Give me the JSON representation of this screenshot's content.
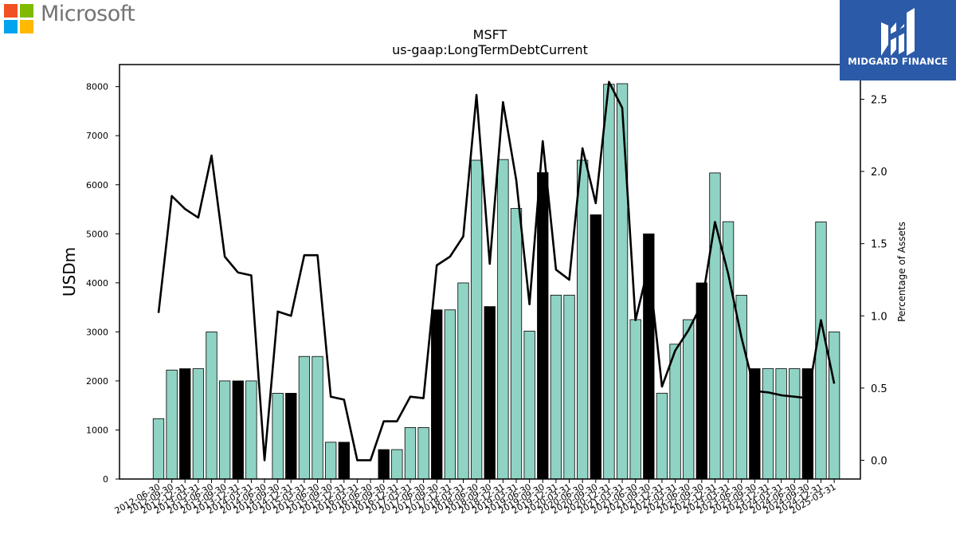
{
  "logos": {
    "microsoft": {
      "text": "Microsoft",
      "colors": [
        "#f25022",
        "#7fba00",
        "#00a4ef",
        "#ffb900"
      ]
    },
    "midgard": {
      "text": "MIDGARD FINANCE",
      "background": "#2b5aa8"
    }
  },
  "chart_data": {
    "type": "bar",
    "title": "MSFT",
    "subtitle": "us-gaap:LongTermDebtCurrent",
    "ylabel": "USDm",
    "y2label": "Percentage of Assets",
    "ylim": [
      0,
      8450
    ],
    "y2lim": [
      -0.13,
      2.74
    ],
    "yticks": [
      0,
      1000,
      2000,
      3000,
      4000,
      5000,
      6000,
      7000,
      8000
    ],
    "y2ticks": [
      0.0,
      0.5,
      1.0,
      1.5,
      2.0,
      2.5
    ],
    "colors": {
      "bar_default": "#8fd3c4",
      "bar_highlight": "#000000",
      "line": "#000000"
    },
    "categories": [
      "2012-06-30",
      "2012-09-30",
      "2012-12-31",
      "2013-03-31",
      "2013-06-30",
      "2013-09-30",
      "2013-12-31",
      "2014-03-31",
      "2014-06-30",
      "2014-09-30",
      "2014-12-31",
      "2015-03-31",
      "2015-06-30",
      "2015-09-30",
      "2015-12-31",
      "2016-03-31",
      "2016-06-30",
      "2016-09-30",
      "2016-12-31",
      "2017-03-31",
      "2017-06-30",
      "2017-09-30",
      "2017-12-31",
      "2018-03-31",
      "2018-06-30",
      "2018-09-30",
      "2018-12-31",
      "2019-03-31",
      "2019-06-30",
      "2019-09-30",
      "2019-12-31",
      "2020-03-31",
      "2020-06-30",
      "2020-09-30",
      "2020-12-31",
      "2021-03-31",
      "2021-06-30",
      "2021-09-30",
      "2021-12-31",
      "2022-03-31",
      "2022-06-30",
      "2022-09-30",
      "2022-12-31",
      "2023-03-31",
      "2023-06-30",
      "2023-09-30",
      "2023-12-31",
      "2024-03-31",
      "2024-06-30",
      "2024-09-30",
      "2024-12-31",
      "2025-03-31"
    ],
    "series": [
      {
        "type": "bar",
        "values": [
          1231,
          2222,
          2249,
          2249,
          2999,
          2000,
          2000,
          2000,
          0,
          1749,
          1749,
          2499,
          2499,
          750,
          750,
          0,
          0,
          600,
          600,
          1050,
          1050,
          3449,
          3449,
          3998,
          6500,
          3516,
          6514,
          5516,
          3016,
          6247,
          3749,
          3749,
          6500,
          5387,
          8048,
          8060,
          3250,
          4998,
          1750,
          2749,
          3249,
          3998,
          6241,
          5247,
          3748,
          2250,
          2250,
          2250,
          2250,
          2250,
          5241,
          2999
        ],
        "highlighted": [
          false,
          false,
          true,
          false,
          false,
          false,
          true,
          false,
          false,
          false,
          true,
          false,
          false,
          false,
          true,
          false,
          false,
          true,
          false,
          false,
          false,
          true,
          false,
          false,
          false,
          true,
          false,
          false,
          false,
          true,
          false,
          false,
          false,
          true,
          false,
          false,
          false,
          true,
          false,
          false,
          false,
          true,
          false,
          false,
          false,
          true,
          false,
          false,
          false,
          true,
          false,
          false
        ]
      },
      {
        "type": "line",
        "axis": "right",
        "values": [
          1.02,
          1.83,
          1.74,
          1.68,
          2.11,
          1.41,
          1.3,
          1.28,
          0.0,
          1.03,
          1.0,
          1.42,
          1.42,
          0.44,
          0.42,
          0.0,
          0.0,
          0.27,
          0.27,
          0.44,
          0.43,
          1.35,
          1.41,
          1.55,
          2.53,
          1.36,
          2.48,
          1.94,
          1.08,
          2.21,
          1.32,
          1.25,
          2.16,
          1.78,
          2.62,
          2.44,
          0.97,
          1.35,
          0.51,
          0.76,
          0.9,
          1.08,
          1.65,
          1.29,
          0.85,
          0.48,
          0.47,
          0.45,
          0.44,
          0.43,
          0.97,
          0.53
        ]
      }
    ]
  }
}
